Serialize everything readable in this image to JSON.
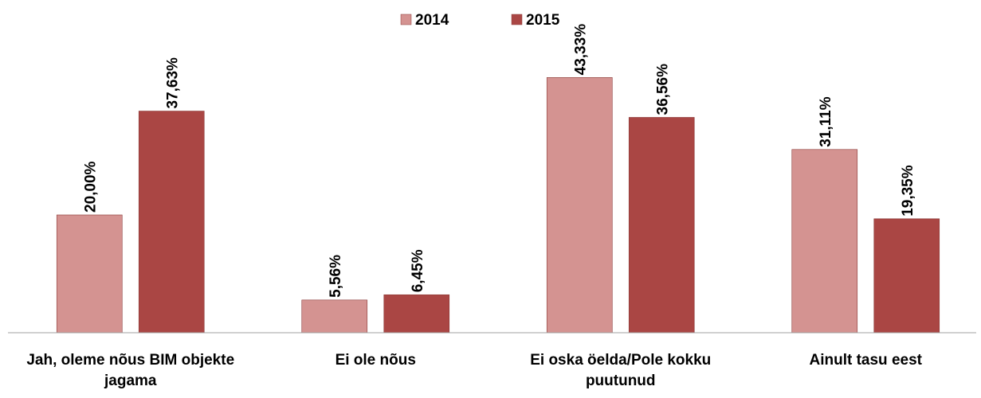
{
  "chart_data": {
    "type": "bar",
    "categories": [
      "Jah, oleme nõus BIM objekte jagama",
      "Ei ole nõus",
      "Ei oska öelda/Pole kokku puutunud",
      "Ainult tasu eest"
    ],
    "series": [
      {
        "name": "2014",
        "color": "#d49391",
        "values": [
          20.0,
          5.56,
          43.33,
          31.11
        ],
        "value_labels": [
          "20,00%",
          "5,56%",
          "43,33%",
          "31,11%"
        ]
      },
      {
        "name": "2015",
        "color": "#aa4644",
        "values": [
          37.63,
          6.45,
          36.56,
          19.35
        ],
        "value_labels": [
          "37,63%",
          "6,45%",
          "36,56%",
          "19,35%"
        ]
      }
    ],
    "ylim": [
      0,
      50
    ],
    "legend": "top"
  }
}
